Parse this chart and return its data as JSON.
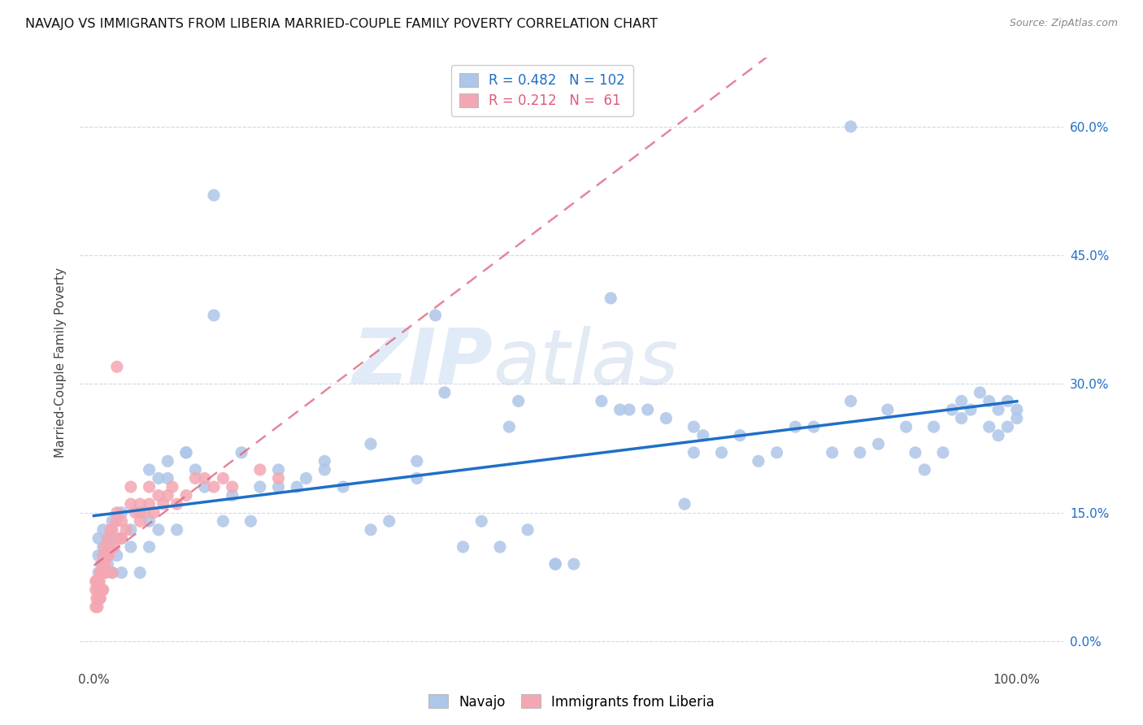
{
  "title": "NAVAJO VS IMMIGRANTS FROM LIBERIA MARRIED-COUPLE FAMILY POVERTY CORRELATION CHART",
  "source": "Source: ZipAtlas.com",
  "ylabel_label": "Married-Couple Family Poverty",
  "legend_labels": [
    "Navajo",
    "Immigrants from Liberia"
  ],
  "navajo_R": 0.482,
  "navajo_N": 102,
  "liberia_R": 0.212,
  "liberia_N": 61,
  "navajo_color": "#aec6e8",
  "navajo_line_color": "#1f6fc6",
  "liberia_color": "#f4a7b2",
  "liberia_line_color": "#e05c7a",
  "watermark_zip": "ZIP",
  "watermark_atlas": "atlas",
  "background_color": "#ffffff",
  "grid_color": "#d0d8e8",
  "ytick_vals": [
    0.0,
    0.15,
    0.3,
    0.45,
    0.6
  ],
  "ytick_labels": [
    "0.0%",
    "15.0%",
    "30.0%",
    "45.0%",
    "60.0%"
  ],
  "xtick_vals": [
    0.0,
    1.0
  ],
  "xtick_labels": [
    "0.0%",
    "100.0%"
  ],
  "xlim": [
    -0.015,
    1.05
  ],
  "ylim": [
    -0.03,
    0.68
  ],
  "navajo_x": [
    0.005,
    0.005,
    0.005,
    0.008,
    0.01,
    0.01,
    0.01,
    0.015,
    0.015,
    0.02,
    0.02,
    0.02,
    0.025,
    0.03,
    0.03,
    0.04,
    0.04,
    0.05,
    0.05,
    0.06,
    0.06,
    0.07,
    0.07,
    0.08,
    0.09,
    0.1,
    0.11,
    0.13,
    0.14,
    0.16,
    0.17,
    0.18,
    0.2,
    0.22,
    0.23,
    0.25,
    0.27,
    0.3,
    0.32,
    0.35,
    0.37,
    0.4,
    0.42,
    0.44,
    0.46,
    0.47,
    0.5,
    0.5,
    0.52,
    0.55,
    0.57,
    0.58,
    0.6,
    0.62,
    0.64,
    0.65,
    0.66,
    0.68,
    0.7,
    0.72,
    0.74,
    0.76,
    0.78,
    0.8,
    0.82,
    0.83,
    0.85,
    0.86,
    0.88,
    0.89,
    0.9,
    0.91,
    0.92,
    0.93,
    0.94,
    0.94,
    0.95,
    0.96,
    0.97,
    0.97,
    0.98,
    0.98,
    0.99,
    0.99,
    1.0,
    1.0,
    0.13,
    0.82,
    0.56,
    0.38,
    0.45,
    0.1,
    0.03,
    0.06,
    0.08,
    0.12,
    0.15,
    0.2,
    0.25,
    0.3,
    0.35,
    0.65
  ],
  "navajo_y": [
    0.08,
    0.1,
    0.12,
    0.09,
    0.08,
    0.11,
    0.13,
    0.09,
    0.12,
    0.08,
    0.12,
    0.14,
    0.1,
    0.12,
    0.08,
    0.13,
    0.11,
    0.15,
    0.08,
    0.11,
    0.2,
    0.13,
    0.19,
    0.21,
    0.13,
    0.22,
    0.2,
    0.52,
    0.14,
    0.22,
    0.14,
    0.18,
    0.18,
    0.18,
    0.19,
    0.2,
    0.18,
    0.13,
    0.14,
    0.21,
    0.38,
    0.11,
    0.14,
    0.11,
    0.28,
    0.13,
    0.09,
    0.09,
    0.09,
    0.28,
    0.27,
    0.27,
    0.27,
    0.26,
    0.16,
    0.25,
    0.24,
    0.22,
    0.24,
    0.21,
    0.22,
    0.25,
    0.25,
    0.22,
    0.28,
    0.22,
    0.23,
    0.27,
    0.25,
    0.22,
    0.2,
    0.25,
    0.22,
    0.27,
    0.26,
    0.28,
    0.27,
    0.29,
    0.28,
    0.25,
    0.27,
    0.24,
    0.28,
    0.25,
    0.27,
    0.26,
    0.38,
    0.6,
    0.4,
    0.29,
    0.25,
    0.22,
    0.15,
    0.14,
    0.19,
    0.18,
    0.17,
    0.2,
    0.21,
    0.23,
    0.19,
    0.22
  ],
  "liberia_x": [
    0.002,
    0.002,
    0.002,
    0.003,
    0.003,
    0.004,
    0.004,
    0.005,
    0.005,
    0.006,
    0.006,
    0.007,
    0.007,
    0.008,
    0.008,
    0.009,
    0.009,
    0.01,
    0.01,
    0.01,
    0.012,
    0.012,
    0.013,
    0.014,
    0.015,
    0.015,
    0.016,
    0.017,
    0.018,
    0.02,
    0.02,
    0.022,
    0.024,
    0.025,
    0.028,
    0.03,
    0.03,
    0.035,
    0.04,
    0.04,
    0.045,
    0.05,
    0.05,
    0.055,
    0.06,
    0.06,
    0.065,
    0.07,
    0.075,
    0.08,
    0.085,
    0.09,
    0.1,
    0.11,
    0.12,
    0.13,
    0.14,
    0.15,
    0.18,
    0.2,
    0.025
  ],
  "liberia_y": [
    0.04,
    0.06,
    0.07,
    0.05,
    0.07,
    0.04,
    0.06,
    0.05,
    0.07,
    0.05,
    0.07,
    0.05,
    0.08,
    0.06,
    0.08,
    0.06,
    0.09,
    0.06,
    0.08,
    0.1,
    0.09,
    0.11,
    0.08,
    0.1,
    0.1,
    0.12,
    0.1,
    0.11,
    0.13,
    0.08,
    0.13,
    0.11,
    0.14,
    0.15,
    0.12,
    0.12,
    0.14,
    0.13,
    0.16,
    0.18,
    0.15,
    0.14,
    0.16,
    0.15,
    0.16,
    0.18,
    0.15,
    0.17,
    0.16,
    0.17,
    0.18,
    0.16,
    0.17,
    0.19,
    0.19,
    0.18,
    0.19,
    0.18,
    0.2,
    0.19,
    0.32
  ]
}
